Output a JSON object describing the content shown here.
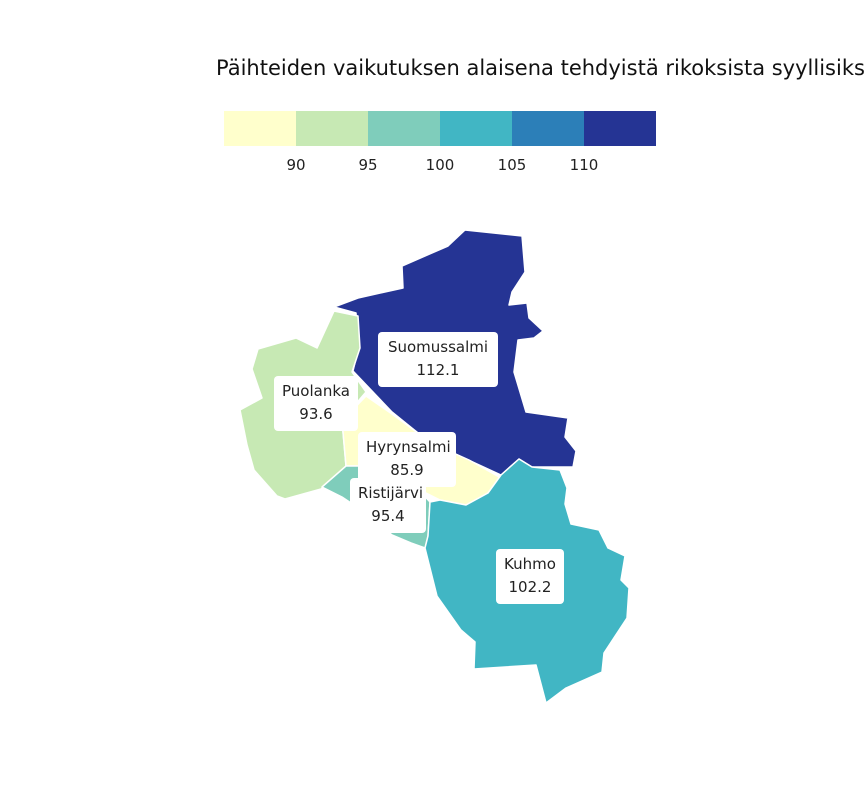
{
  "map": {
    "title": "Päihteiden vaikutuksen alaisena tehdyistä rikoksista syyllisiksi",
    "legend": {
      "colors": [
        "#ffffcc",
        "#c7e9b4",
        "#7fcdbb",
        "#41b6c4",
        "#2c7fb8",
        "#253494"
      ],
      "ticks": [
        "90",
        "95",
        "100",
        "105",
        "110"
      ]
    },
    "regions": [
      {
        "name": "Suomussalmi",
        "value": "112.1",
        "color": "#253494"
      },
      {
        "name": "Puolanka",
        "value": "93.6",
        "color": "#c7e9b4"
      },
      {
        "name": "Hyrynsalmi",
        "value": "85.9",
        "color": "#ffffcc"
      },
      {
        "name": "Ristijärvi",
        "value": "95.4",
        "color": "#7fcdbb"
      },
      {
        "name": "Kuhmo",
        "value": "102.2",
        "color": "#41b6c4"
      }
    ]
  }
}
